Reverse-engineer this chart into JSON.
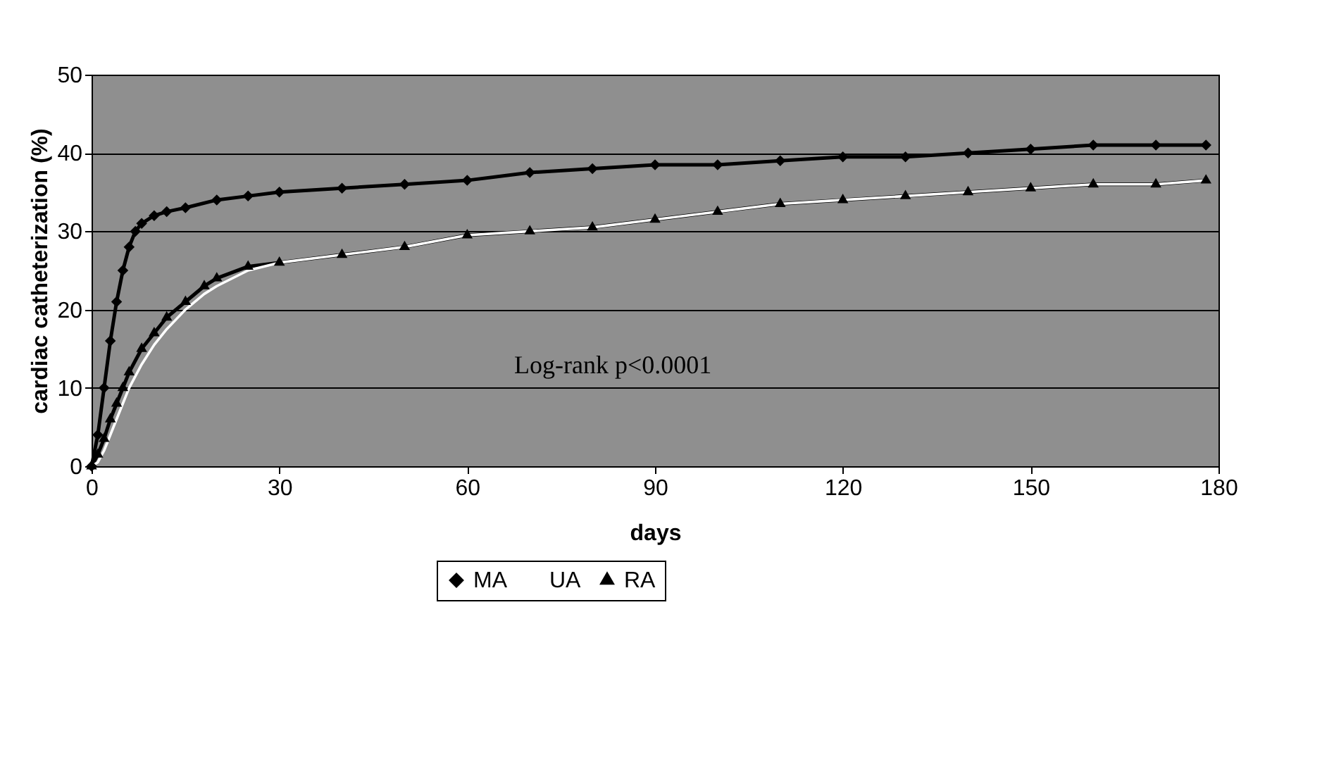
{
  "chart_data": {
    "type": "line",
    "xlabel": "days",
    "ylabel": "cardiac catheterization (%)",
    "xlim": [
      0,
      180
    ],
    "xticks": [
      0,
      30,
      60,
      90,
      120,
      150,
      180
    ],
    "ylim": [
      0,
      50
    ],
    "yticks": [
      0,
      10,
      20,
      30,
      40,
      50
    ],
    "grid": "y",
    "legend": "bottom",
    "line_style": "solid",
    "annotations": [
      "Log-rank p<0.0001"
    ],
    "series": [
      {
        "name": "MA",
        "color": "#000000",
        "marker": "diamond",
        "x": [
          0,
          1,
          2,
          3,
          4,
          5,
          6,
          7,
          8,
          10,
          12,
          15,
          20,
          25,
          30,
          40,
          50,
          60,
          70,
          80,
          90,
          100,
          110,
          120,
          130,
          140,
          150,
          160,
          170,
          178
        ],
        "values": [
          0,
          4,
          10,
          16,
          21,
          25,
          28,
          30,
          31,
          32,
          32.5,
          33,
          34,
          34.5,
          35,
          35.5,
          36,
          36.5,
          37.5,
          38,
          38.5,
          38.5,
          39,
          39.5,
          39.5,
          40,
          40.5,
          41,
          41,
          41
        ]
      },
      {
        "name": "UA",
        "color": "#ffffff",
        "marker": "none",
        "x": [
          0,
          1,
          2,
          3,
          4,
          5,
          6,
          8,
          10,
          12,
          15,
          18,
          20,
          25,
          30,
          40,
          50,
          60,
          70,
          80,
          90,
          100,
          110,
          120,
          130,
          140,
          150,
          160,
          170,
          178
        ],
        "values": [
          0,
          0.5,
          2,
          4,
          6,
          8,
          10,
          13,
          15.5,
          17.5,
          20,
          22,
          23,
          25,
          26,
          27,
          28,
          29.5,
          30,
          30.5,
          31.5,
          32.5,
          33.5,
          34,
          34.5,
          35,
          35.5,
          36,
          36,
          36.5
        ]
      },
      {
        "name": "RA",
        "color": "#000000",
        "marker": "triangle",
        "x": [
          0,
          1,
          2,
          3,
          4,
          5,
          6,
          8,
          10,
          12,
          15,
          18,
          20,
          25,
          30,
          40,
          50,
          60,
          70,
          80,
          90,
          100,
          110,
          120,
          130,
          140,
          150,
          160,
          170,
          178
        ],
        "values": [
          0,
          1.5,
          3.5,
          6,
          8,
          10,
          12,
          15,
          17,
          19,
          21,
          23,
          24,
          25.5,
          26,
          27,
          28,
          29.5,
          30,
          30.5,
          31.5,
          32.5,
          33.5,
          34,
          34.5,
          35,
          35.5,
          36,
          36,
          36.5
        ]
      }
    ]
  }
}
